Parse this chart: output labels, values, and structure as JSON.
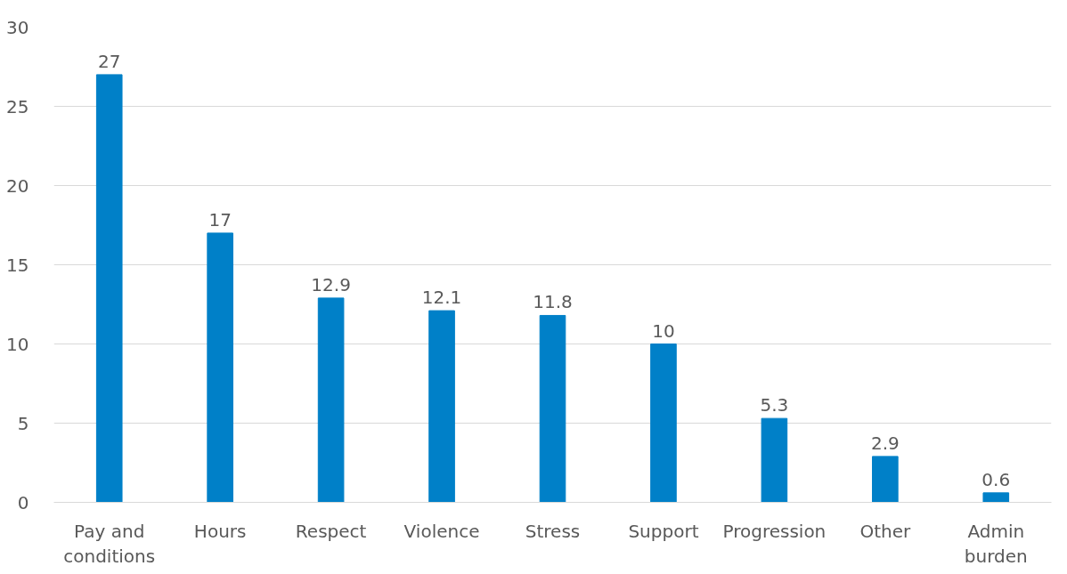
{
  "chart_data": {
    "type": "bar",
    "categories": [
      "Pay and\nconditions",
      "Hours",
      "Respect",
      "Violence",
      "Stress",
      "Support",
      "Progression",
      "Other",
      "Admin\nburden"
    ],
    "values": [
      27,
      17,
      12.9,
      12.1,
      11.8,
      10,
      5.3,
      2.9,
      0.6
    ],
    "color": "#0080c8",
    "ylim": [
      0,
      30
    ],
    "yticks": [
      0,
      5,
      10,
      15,
      20,
      25,
      30
    ],
    "grid": "y",
    "data_labels": true
  }
}
